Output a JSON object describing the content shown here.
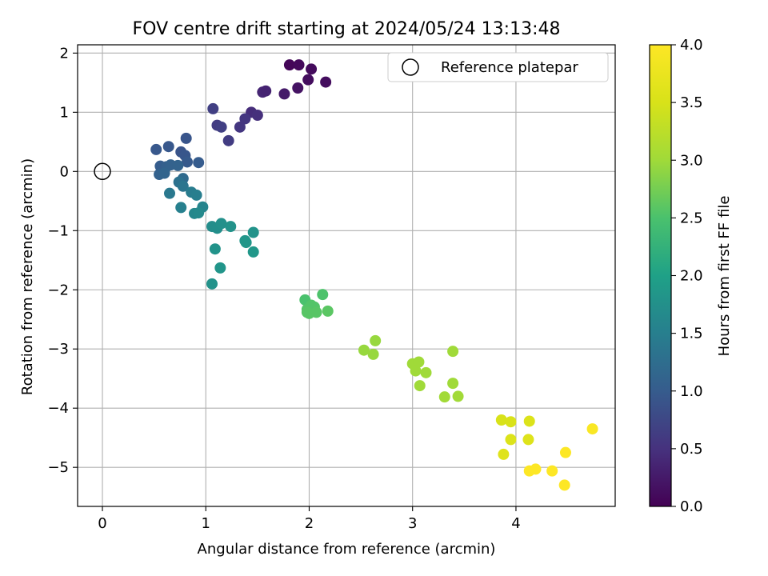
{
  "chart_data": {
    "type": "scatter",
    "title": "FOV centre drift starting at 2024/05/24 13:13:48",
    "xlabel": "Angular distance from reference (arcmin)",
    "ylabel": "Rotation from reference (arcmin)",
    "xlim": [
      -0.24,
      4.96
    ],
    "ylim": [
      -5.66,
      2.14
    ],
    "xticks": [
      0,
      1,
      2,
      3,
      4
    ],
    "yticks": [
      -5,
      -4,
      -3,
      -2,
      -1,
      0,
      1,
      2
    ],
    "grid": true,
    "legend": {
      "position": "top-right",
      "entries": [
        "Reference platepar"
      ]
    },
    "reference_point": {
      "x": 0,
      "y": 0,
      "label": "Reference platepar"
    },
    "colorbar": {
      "label": "Hours from first FF file",
      "colormap": "viridis",
      "range": [
        0,
        4.0
      ],
      "ticks": [
        "0.0",
        "0.5",
        "1.0",
        "1.5",
        "2.0",
        "2.5",
        "3.0",
        "3.5",
        "4.0"
      ]
    },
    "points": [
      {
        "x": 1.81,
        "y": 1.8,
        "t": 0.05
      },
      {
        "x": 1.9,
        "y": 1.8,
        "t": 0.08
      },
      {
        "x": 2.02,
        "y": 1.73,
        "t": 0.1
      },
      {
        "x": 1.99,
        "y": 1.55,
        "t": 0.12
      },
      {
        "x": 2.16,
        "y": 1.51,
        "t": 0.12
      },
      {
        "x": 1.89,
        "y": 1.41,
        "t": 0.18
      },
      {
        "x": 1.76,
        "y": 1.31,
        "t": 0.25
      },
      {
        "x": 1.55,
        "y": 1.34,
        "t": 0.38
      },
      {
        "x": 1.58,
        "y": 1.36,
        "t": 0.35
      },
      {
        "x": 1.44,
        "y": 1.0,
        "t": 0.45
      },
      {
        "x": 1.5,
        "y": 0.95,
        "t": 0.48
      },
      {
        "x": 1.38,
        "y": 0.89,
        "t": 0.55
      },
      {
        "x": 1.33,
        "y": 0.75,
        "t": 0.55
      },
      {
        "x": 1.07,
        "y": 1.06,
        "t": 0.65
      },
      {
        "x": 1.11,
        "y": 0.78,
        "t": 0.62
      },
      {
        "x": 1.15,
        "y": 0.75,
        "t": 0.65
      },
      {
        "x": 1.22,
        "y": 0.52,
        "t": 0.62
      },
      {
        "x": 0.52,
        "y": 0.37,
        "t": 0.95
      },
      {
        "x": 0.64,
        "y": 0.42,
        "t": 0.95
      },
      {
        "x": 0.81,
        "y": 0.56,
        "t": 0.92
      },
      {
        "x": 0.76,
        "y": 0.33,
        "t": 0.9
      },
      {
        "x": 0.8,
        "y": 0.27,
        "t": 0.93
      },
      {
        "x": 0.82,
        "y": 0.16,
        "t": 0.98
      },
      {
        "x": 0.93,
        "y": 0.15,
        "t": 1.0
      },
      {
        "x": 0.56,
        "y": 0.09,
        "t": 1.02
      },
      {
        "x": 0.62,
        "y": 0.08,
        "t": 1.05
      },
      {
        "x": 0.66,
        "y": 0.11,
        "t": 1.08
      },
      {
        "x": 0.73,
        "y": 0.1,
        "t": 1.1
      },
      {
        "x": 0.55,
        "y": -0.05,
        "t": 1.08
      },
      {
        "x": 0.6,
        "y": -0.03,
        "t": 1.12
      },
      {
        "x": 0.78,
        "y": -0.12,
        "t": 1.2
      },
      {
        "x": 0.74,
        "y": -0.18,
        "t": 1.3
      },
      {
        "x": 0.78,
        "y": -0.25,
        "t": 1.35
      },
      {
        "x": 0.65,
        "y": -0.37,
        "t": 1.4
      },
      {
        "x": 0.86,
        "y": -0.35,
        "t": 1.45
      },
      {
        "x": 0.91,
        "y": -0.4,
        "t": 1.48
      },
      {
        "x": 0.76,
        "y": -0.61,
        "t": 1.52
      },
      {
        "x": 0.97,
        "y": -0.6,
        "t": 1.58
      },
      {
        "x": 0.89,
        "y": -0.71,
        "t": 1.62
      },
      {
        "x": 0.93,
        "y": -0.7,
        "t": 1.65
      },
      {
        "x": 1.06,
        "y": -0.93,
        "t": 1.7
      },
      {
        "x": 1.11,
        "y": -0.96,
        "t": 1.72
      },
      {
        "x": 1.15,
        "y": -0.88,
        "t": 1.75
      },
      {
        "x": 1.24,
        "y": -0.93,
        "t": 1.78
      },
      {
        "x": 1.46,
        "y": -1.03,
        "t": 1.8
      },
      {
        "x": 1.38,
        "y": -1.17,
        "t": 1.82
      },
      {
        "x": 1.39,
        "y": -1.2,
        "t": 1.84
      },
      {
        "x": 1.46,
        "y": -1.36,
        "t": 1.86
      },
      {
        "x": 1.09,
        "y": -1.31,
        "t": 1.8
      },
      {
        "x": 1.14,
        "y": -1.63,
        "t": 1.82
      },
      {
        "x": 1.06,
        "y": -1.9,
        "t": 1.78
      },
      {
        "x": 1.96,
        "y": -2.17,
        "t": 2.5
      },
      {
        "x": 2.13,
        "y": -2.08,
        "t": 2.52
      },
      {
        "x": 2.02,
        "y": -2.26,
        "t": 2.55
      },
      {
        "x": 2.05,
        "y": -2.29,
        "t": 2.55
      },
      {
        "x": 1.98,
        "y": -2.33,
        "t": 2.55
      },
      {
        "x": 1.98,
        "y": -2.38,
        "t": 2.58
      },
      {
        "x": 2.0,
        "y": -2.4,
        "t": 2.58
      },
      {
        "x": 2.07,
        "y": -2.38,
        "t": 2.58
      },
      {
        "x": 2.18,
        "y": -2.36,
        "t": 2.6
      },
      {
        "x": 2.53,
        "y": -3.02,
        "t": 2.95
      },
      {
        "x": 2.64,
        "y": -2.86,
        "t": 2.95
      },
      {
        "x": 2.62,
        "y": -3.09,
        "t": 2.95
      },
      {
        "x": 3.0,
        "y": -3.25,
        "t": 3.0
      },
      {
        "x": 3.06,
        "y": -3.22,
        "t": 3.0
      },
      {
        "x": 3.03,
        "y": -3.37,
        "t": 3.0
      },
      {
        "x": 3.13,
        "y": -3.4,
        "t": 3.0
      },
      {
        "x": 3.07,
        "y": -3.62,
        "t": 3.0
      },
      {
        "x": 3.39,
        "y": -3.04,
        "t": 3.0
      },
      {
        "x": 3.39,
        "y": -3.58,
        "t": 3.0
      },
      {
        "x": 3.31,
        "y": -3.81,
        "t": 3.02
      },
      {
        "x": 3.44,
        "y": -3.8,
        "t": 3.02
      },
      {
        "x": 3.86,
        "y": -4.2,
        "t": 3.5
      },
      {
        "x": 3.95,
        "y": -4.23,
        "t": 3.52
      },
      {
        "x": 4.13,
        "y": -4.22,
        "t": 3.55
      },
      {
        "x": 3.95,
        "y": -4.53,
        "t": 3.55
      },
      {
        "x": 4.12,
        "y": -4.53,
        "t": 3.58
      },
      {
        "x": 3.88,
        "y": -4.78,
        "t": 3.6
      },
      {
        "x": 4.48,
        "y": -4.75,
        "t": 3.98
      },
      {
        "x": 4.74,
        "y": -4.35,
        "t": 3.95
      },
      {
        "x": 4.13,
        "y": -5.06,
        "t": 4.0
      },
      {
        "x": 4.19,
        "y": -5.03,
        "t": 4.0
      },
      {
        "x": 4.35,
        "y": -5.06,
        "t": 4.0
      },
      {
        "x": 4.47,
        "y": -5.3,
        "t": 4.0
      }
    ]
  }
}
